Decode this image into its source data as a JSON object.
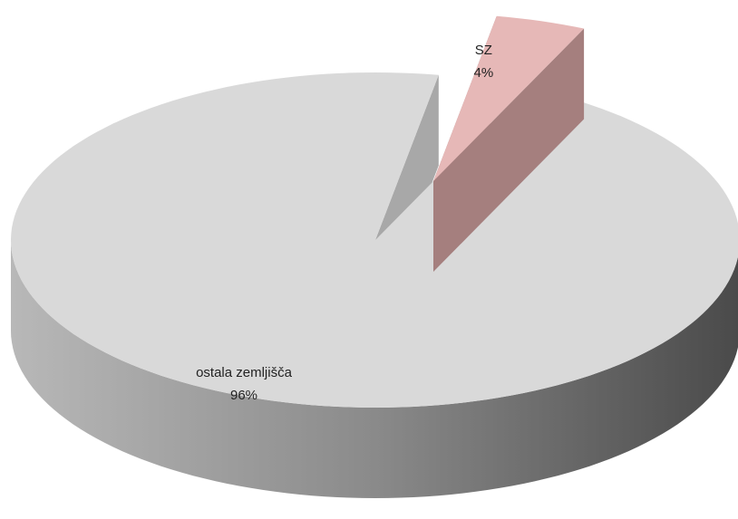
{
  "chart_data": {
    "type": "pie",
    "categories": [
      "SZ",
      "ostala zemljišča"
    ],
    "values": [
      4,
      96
    ],
    "value_labels": [
      "4%",
      "96%"
    ],
    "colors": [
      "#e6b8b7",
      "#d9d9d9"
    ]
  }
}
